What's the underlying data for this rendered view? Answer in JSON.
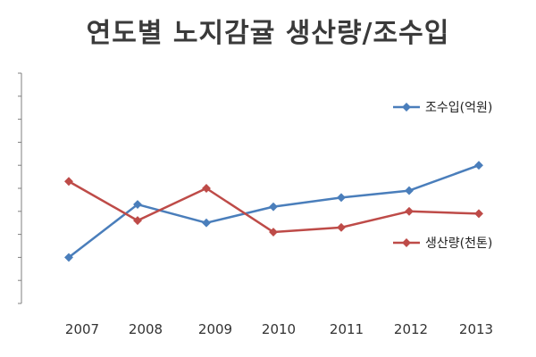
{
  "chart_data": {
    "type": "line",
    "title": "연도별 노지감귤 생산량/조수입",
    "xlabel": "",
    "ylabel": "",
    "categories": [
      "2007",
      "2008",
      "2009",
      "2010",
      "2011",
      "2012",
      "2013"
    ],
    "y_range": [
      0,
      10
    ],
    "y_ticks": [
      1,
      2,
      3,
      4,
      5,
      6,
      7,
      8,
      9,
      10
    ],
    "y_tick_labels_shown": false,
    "grid": false,
    "legend": "right",
    "series": [
      {
        "name": "조수입(억원)",
        "color": "#4a7ebb",
        "values": [
          2.0,
          4.3,
          3.5,
          4.2,
          4.6,
          4.9,
          6.0
        ]
      },
      {
        "name": "생산량(천톤)",
        "color": "#be4b48",
        "values": [
          5.3,
          3.6,
          5.0,
          3.1,
          3.3,
          4.0,
          3.9
        ]
      }
    ]
  }
}
